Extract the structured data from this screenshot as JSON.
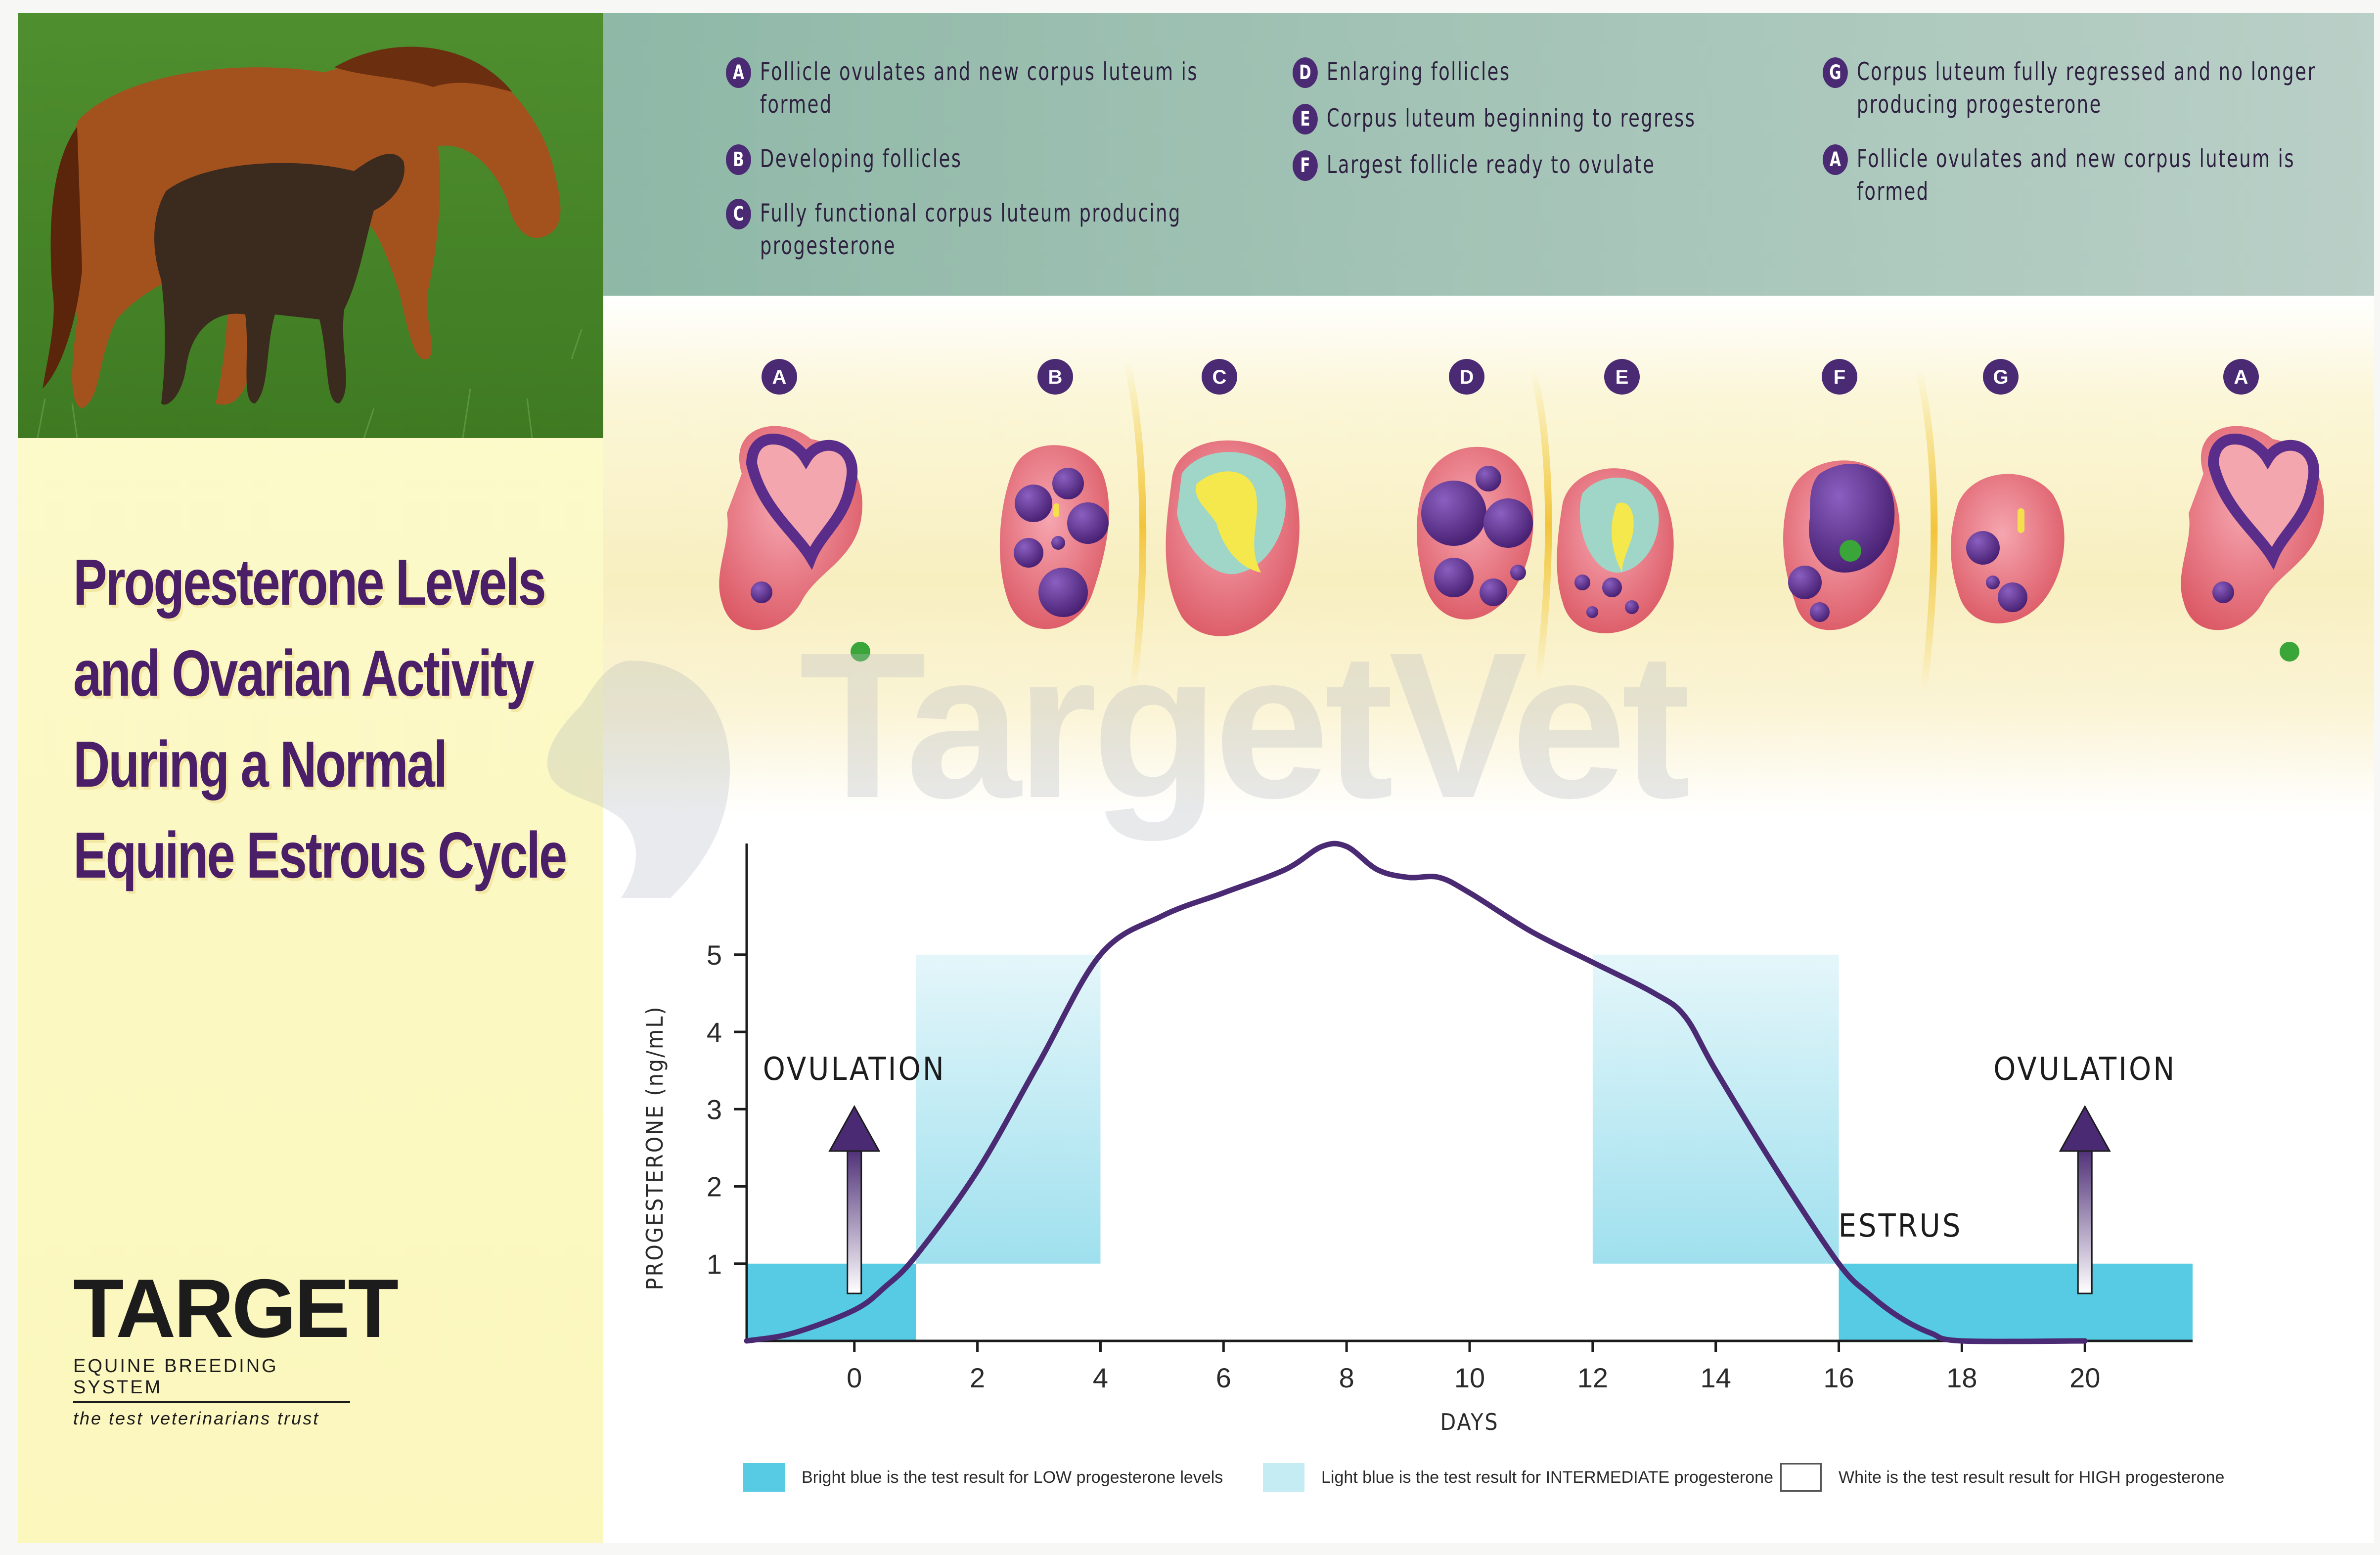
{
  "title_lines": [
    "Progesterone Levels",
    "and Ovarian Activity",
    "During a Normal",
    "Equine Estrous Cycle"
  ],
  "brand": {
    "name": "TARGET",
    "system": "EQUINE BREEDING SYSTEM",
    "tagline": "the test veterinarians trust"
  },
  "watermark": "TargetVet",
  "legend": {
    "columns": [
      [
        {
          "badge": "A",
          "text": "Follicle ovulates and new corpus luteum is formed"
        },
        {
          "badge": "B",
          "text": "Developing follicles"
        },
        {
          "badge": "C",
          "text": "Fully functional corpus luteum producing progesterone"
        }
      ],
      [
        {
          "badge": "D",
          "text": "Enlarging follicles"
        },
        {
          "badge": "E",
          "text": "Corpus luteum beginning to regress"
        },
        {
          "badge": "F",
          "text": "Largest follicle ready to ovulate"
        }
      ],
      [
        {
          "badge": "G",
          "text": "Corpus luteum fully regressed and no longer producing progesterone"
        },
        {
          "badge": "A",
          "text": "Follicle ovulates and new corpus luteum is formed"
        }
      ]
    ]
  },
  "ovary_badges": [
    "A",
    "B",
    "C",
    "D",
    "E",
    "F",
    "G",
    "A"
  ],
  "colors": {
    "title": "#4a1f68",
    "badge": "#4a2a73",
    "low_bright_blue": "#57cbe3",
    "intermediate_light_blue": "#c6ecf3",
    "curve": "#4a2a73",
    "legend_band": "#9fc2b4",
    "left_panel": "#fbf8c2"
  },
  "chart_data": {
    "type": "line",
    "title": "Progesterone Levels and Ovarian Activity During a Normal Equine Estrous Cycle",
    "xlabel": "DAYS",
    "ylabel": "PROGESTERONE (ng/mL)",
    "xlim": [
      -1.75,
      21.75
    ],
    "ylim": [
      0,
      6.4
    ],
    "x_ticks": [
      0,
      2,
      4,
      6,
      8,
      10,
      12,
      14,
      16,
      18,
      20
    ],
    "y_ticks": [
      1,
      2,
      3,
      4,
      5
    ],
    "series": [
      {
        "name": "Progesterone",
        "x": [
          -1.75,
          -1,
          0,
          0.5,
          1,
          2,
          3,
          4,
          5,
          6,
          7,
          7.6,
          8,
          8.5,
          9,
          9.5,
          10,
          11,
          12,
          13,
          13.5,
          14,
          15,
          16,
          16.5,
          17,
          17.5,
          18,
          20
        ],
        "y": [
          0,
          0.1,
          0.4,
          0.7,
          1.1,
          2.2,
          3.6,
          5.0,
          5.5,
          5.8,
          6.1,
          6.4,
          6.4,
          6.1,
          6.0,
          6.0,
          5.8,
          5.3,
          4.9,
          4.5,
          4.2,
          3.5,
          2.2,
          1.0,
          0.6,
          0.3,
          0.1,
          0,
          0
        ]
      }
    ],
    "bands": [
      {
        "x0": -1.75,
        "x1": 1,
        "y0": 0,
        "y1": 1,
        "level": "low"
      },
      {
        "x0": 1,
        "x1": 4,
        "y0": 1,
        "y1": 5,
        "level": "intermediate"
      },
      {
        "x0": 12,
        "x1": 16,
        "y0": 1,
        "y1": 5,
        "level": "intermediate"
      },
      {
        "x0": 16,
        "x1": 21.75,
        "y0": 0,
        "y1": 1,
        "level": "low"
      }
    ],
    "annotations": [
      {
        "text": "OVULATION",
        "x": 0
      },
      {
        "text": "OVULATION",
        "x": 20
      },
      {
        "text": "ESTRUS",
        "x": 17
      }
    ],
    "legend": [
      {
        "level": "low",
        "label": "Bright blue is the test result for LOW progesterone levels"
      },
      {
        "level": "intermediate",
        "label": "Light blue is the test result for INTERMEDIATE progesterone"
      },
      {
        "level": "high",
        "label": "White is the test result result for HIGH progesterone"
      }
    ]
  }
}
